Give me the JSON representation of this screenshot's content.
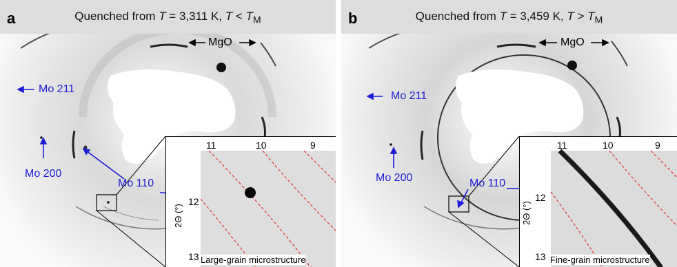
{
  "panels": [
    {
      "letter": "a",
      "title_prefix": "Quenched from ",
      "title_T": "T",
      "title_value": " = 3,311 K, ",
      "title_T2": "T",
      "title_rel": " < ",
      "title_TM": "T",
      "title_TM_sub": "M",
      "labels": {
        "mgo": "MgO",
        "mo211": "Mo 211",
        "mo200": "Mo 200",
        "mo110": "Mo 110"
      },
      "inset": {
        "ticks_top": [
          "11",
          "10",
          "9"
        ],
        "tick_12": "12",
        "tick_13": "13",
        "axis_label": "2Θ (°)",
        "caption": "Large-grain microstructure"
      }
    },
    {
      "letter": "b",
      "title_prefix": "Quenched from ",
      "title_T": "T",
      "title_value": " = 3,459 K, ",
      "title_T2": "T",
      "title_rel": " > ",
      "title_TM": "T",
      "title_TM_sub": "M",
      "labels": {
        "mgo": "MgO",
        "mo211": "Mo 211",
        "mo200": "Mo 200",
        "mo110": "Mo 110"
      },
      "inset": {
        "ticks_top": [
          "11",
          "10",
          "9"
        ],
        "tick_12": "12",
        "tick_13": "13",
        "axis_label": "2Θ (°)",
        "caption": "Fine-grain microstructure"
      }
    }
  ],
  "colors": {
    "arrow": "#1c1cd6",
    "guide_lines": "#e03030",
    "header": "#dddddd"
  }
}
